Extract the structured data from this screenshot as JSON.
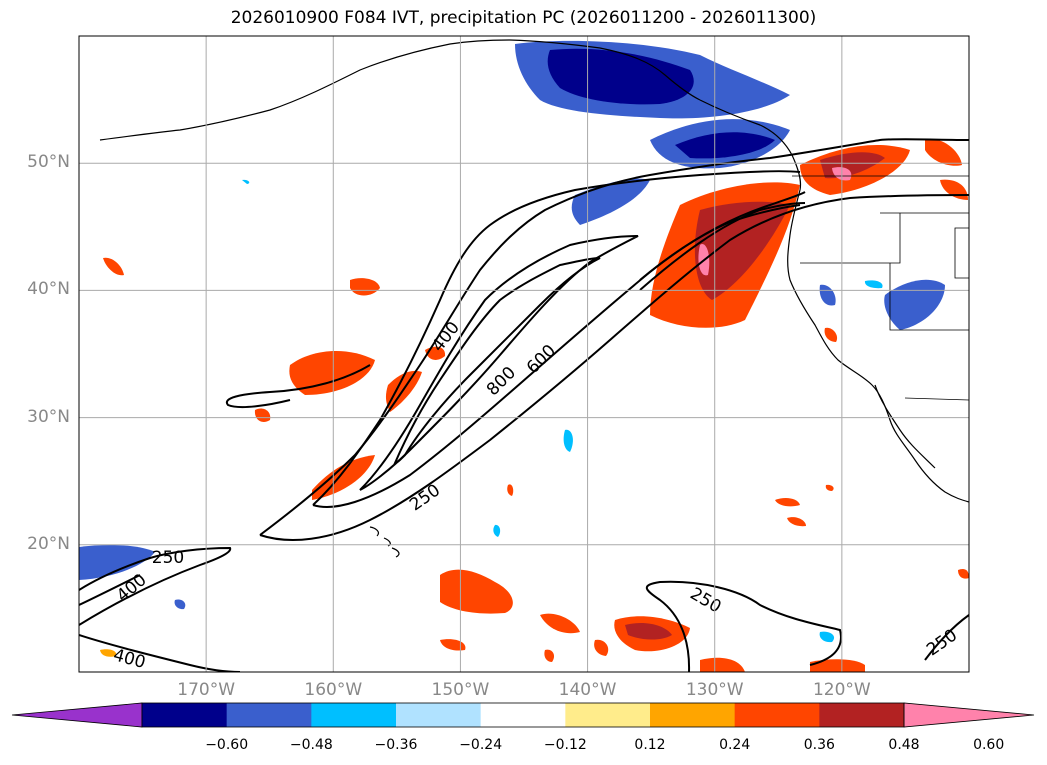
{
  "title": "2026010900 F084 IVT, precipitation PC (2026011200 - 2026011300)",
  "map": {
    "lon_ticks": [
      {
        "label": "170°W",
        "lon": -170
      },
      {
        "label": "160°W",
        "lon": -160
      },
      {
        "label": "150°W",
        "lon": -150
      },
      {
        "label": "140°W",
        "lon": -140
      },
      {
        "label": "130°W",
        "lon": -130
      },
      {
        "label": "120°W",
        "lon": -120
      }
    ],
    "lat_ticks": [
      {
        "label": "50°N",
        "lat": 50
      },
      {
        "label": "40°N",
        "lat": 40
      },
      {
        "label": "30°N",
        "lat": 30
      },
      {
        "label": "20°N",
        "lat": 20
      }
    ],
    "extent": {
      "lon_min": -180,
      "lon_max": -110,
      "lat_min": 10,
      "lat_max": 60
    },
    "ivt_contour_labels": [
      "400",
      "800",
      "600",
      "250",
      "250",
      "400",
      "400",
      "250",
      "250"
    ]
  },
  "colorbar": {
    "tick_labels": [
      "−0.60",
      "−0.48",
      "−0.36",
      "−0.24",
      "−0.12",
      "0.12",
      "0.24",
      "0.36",
      "0.48",
      "0.60"
    ],
    "colors": [
      "#9932cc",
      "#00008b",
      "#3a5fcd",
      "#00bfff",
      "#b0e2ff",
      "#ffffff",
      "#ffec8b",
      "#ffa500",
      "#ff4500",
      "#b22222",
      "#ff82ab"
    ]
  }
}
